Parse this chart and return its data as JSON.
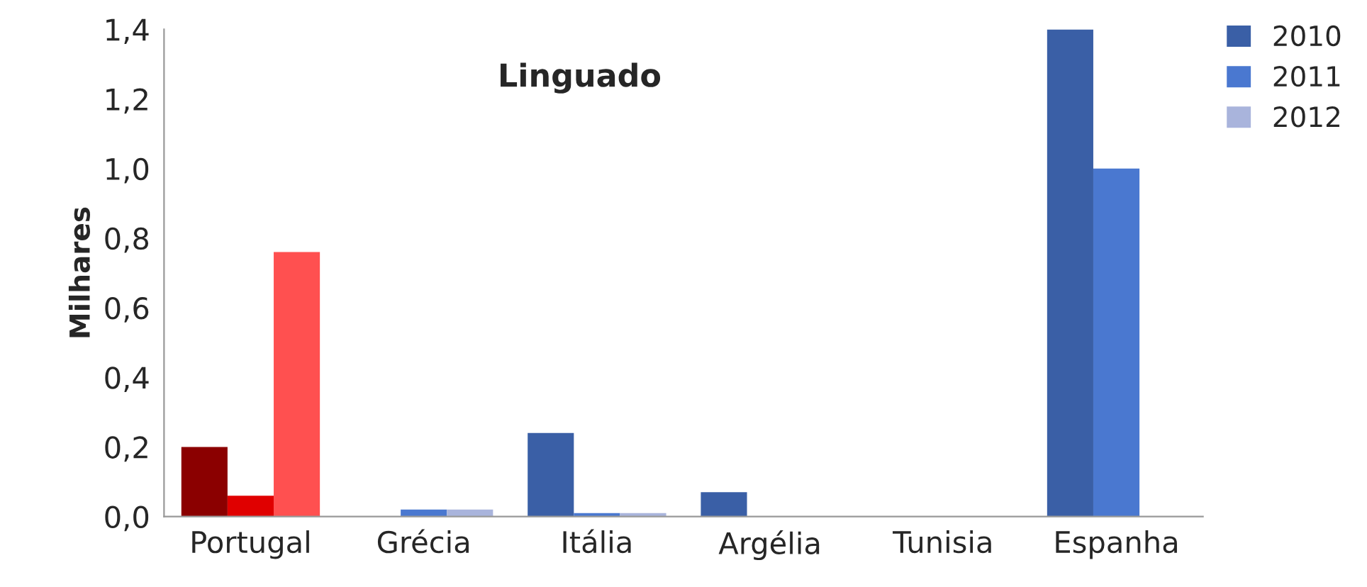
{
  "chart_data": {
    "type": "bar",
    "title": "Linguado",
    "ylabel": "Milhares",
    "categories": [
      "Portugal",
      "Grécia",
      "Itália",
      "Argélia",
      "Tunisia",
      "Espanha"
    ],
    "series": [
      {
        "name": "2010",
        "color": "#3a5fa6",
        "colors": [
          "#8b0000",
          "#3a5fa6",
          "#3a5fa6",
          "#3a5fa6",
          "#3a5fa6",
          "#3a5fa6"
        ],
        "values": [
          0.2,
          0,
          0.24,
          0.07,
          0,
          1.4
        ]
      },
      {
        "name": "2011",
        "color": "#4a78d0",
        "colors": [
          "#e00000",
          "#4a78d0",
          "#4a78d0",
          "#4a78d0",
          "#4a78d0",
          "#4a78d0"
        ],
        "values": [
          0.06,
          0.02,
          0.01,
          null,
          0,
          1.0
        ]
      },
      {
        "name": "2012",
        "color": "#a9b4dc",
        "colors": [
          "#ff5050",
          "#a9b4dc",
          "#a9b4dc",
          "#a9b4dc",
          "#a9b4dc",
          "#a9b4dc"
        ],
        "values": [
          0.76,
          0.02,
          0.01,
          null,
          0,
          0
        ]
      }
    ],
    "ylim": [
      0,
      1.4
    ],
    "yticks": [
      {
        "value": 0,
        "label": "0,0"
      },
      {
        "value": 0.2,
        "label": "0,2"
      },
      {
        "value": 0.4,
        "label": "0,4"
      },
      {
        "value": 0.6,
        "label": "0,6"
      },
      {
        "value": 0.8,
        "label": "0,8"
      },
      {
        "value": 1.0,
        "label": "1,0"
      },
      {
        "value": 1.2,
        "label": "1,2"
      },
      {
        "value": 1.4,
        "label": "1,4"
      }
    ],
    "grid": false,
    "legend": "top right"
  }
}
